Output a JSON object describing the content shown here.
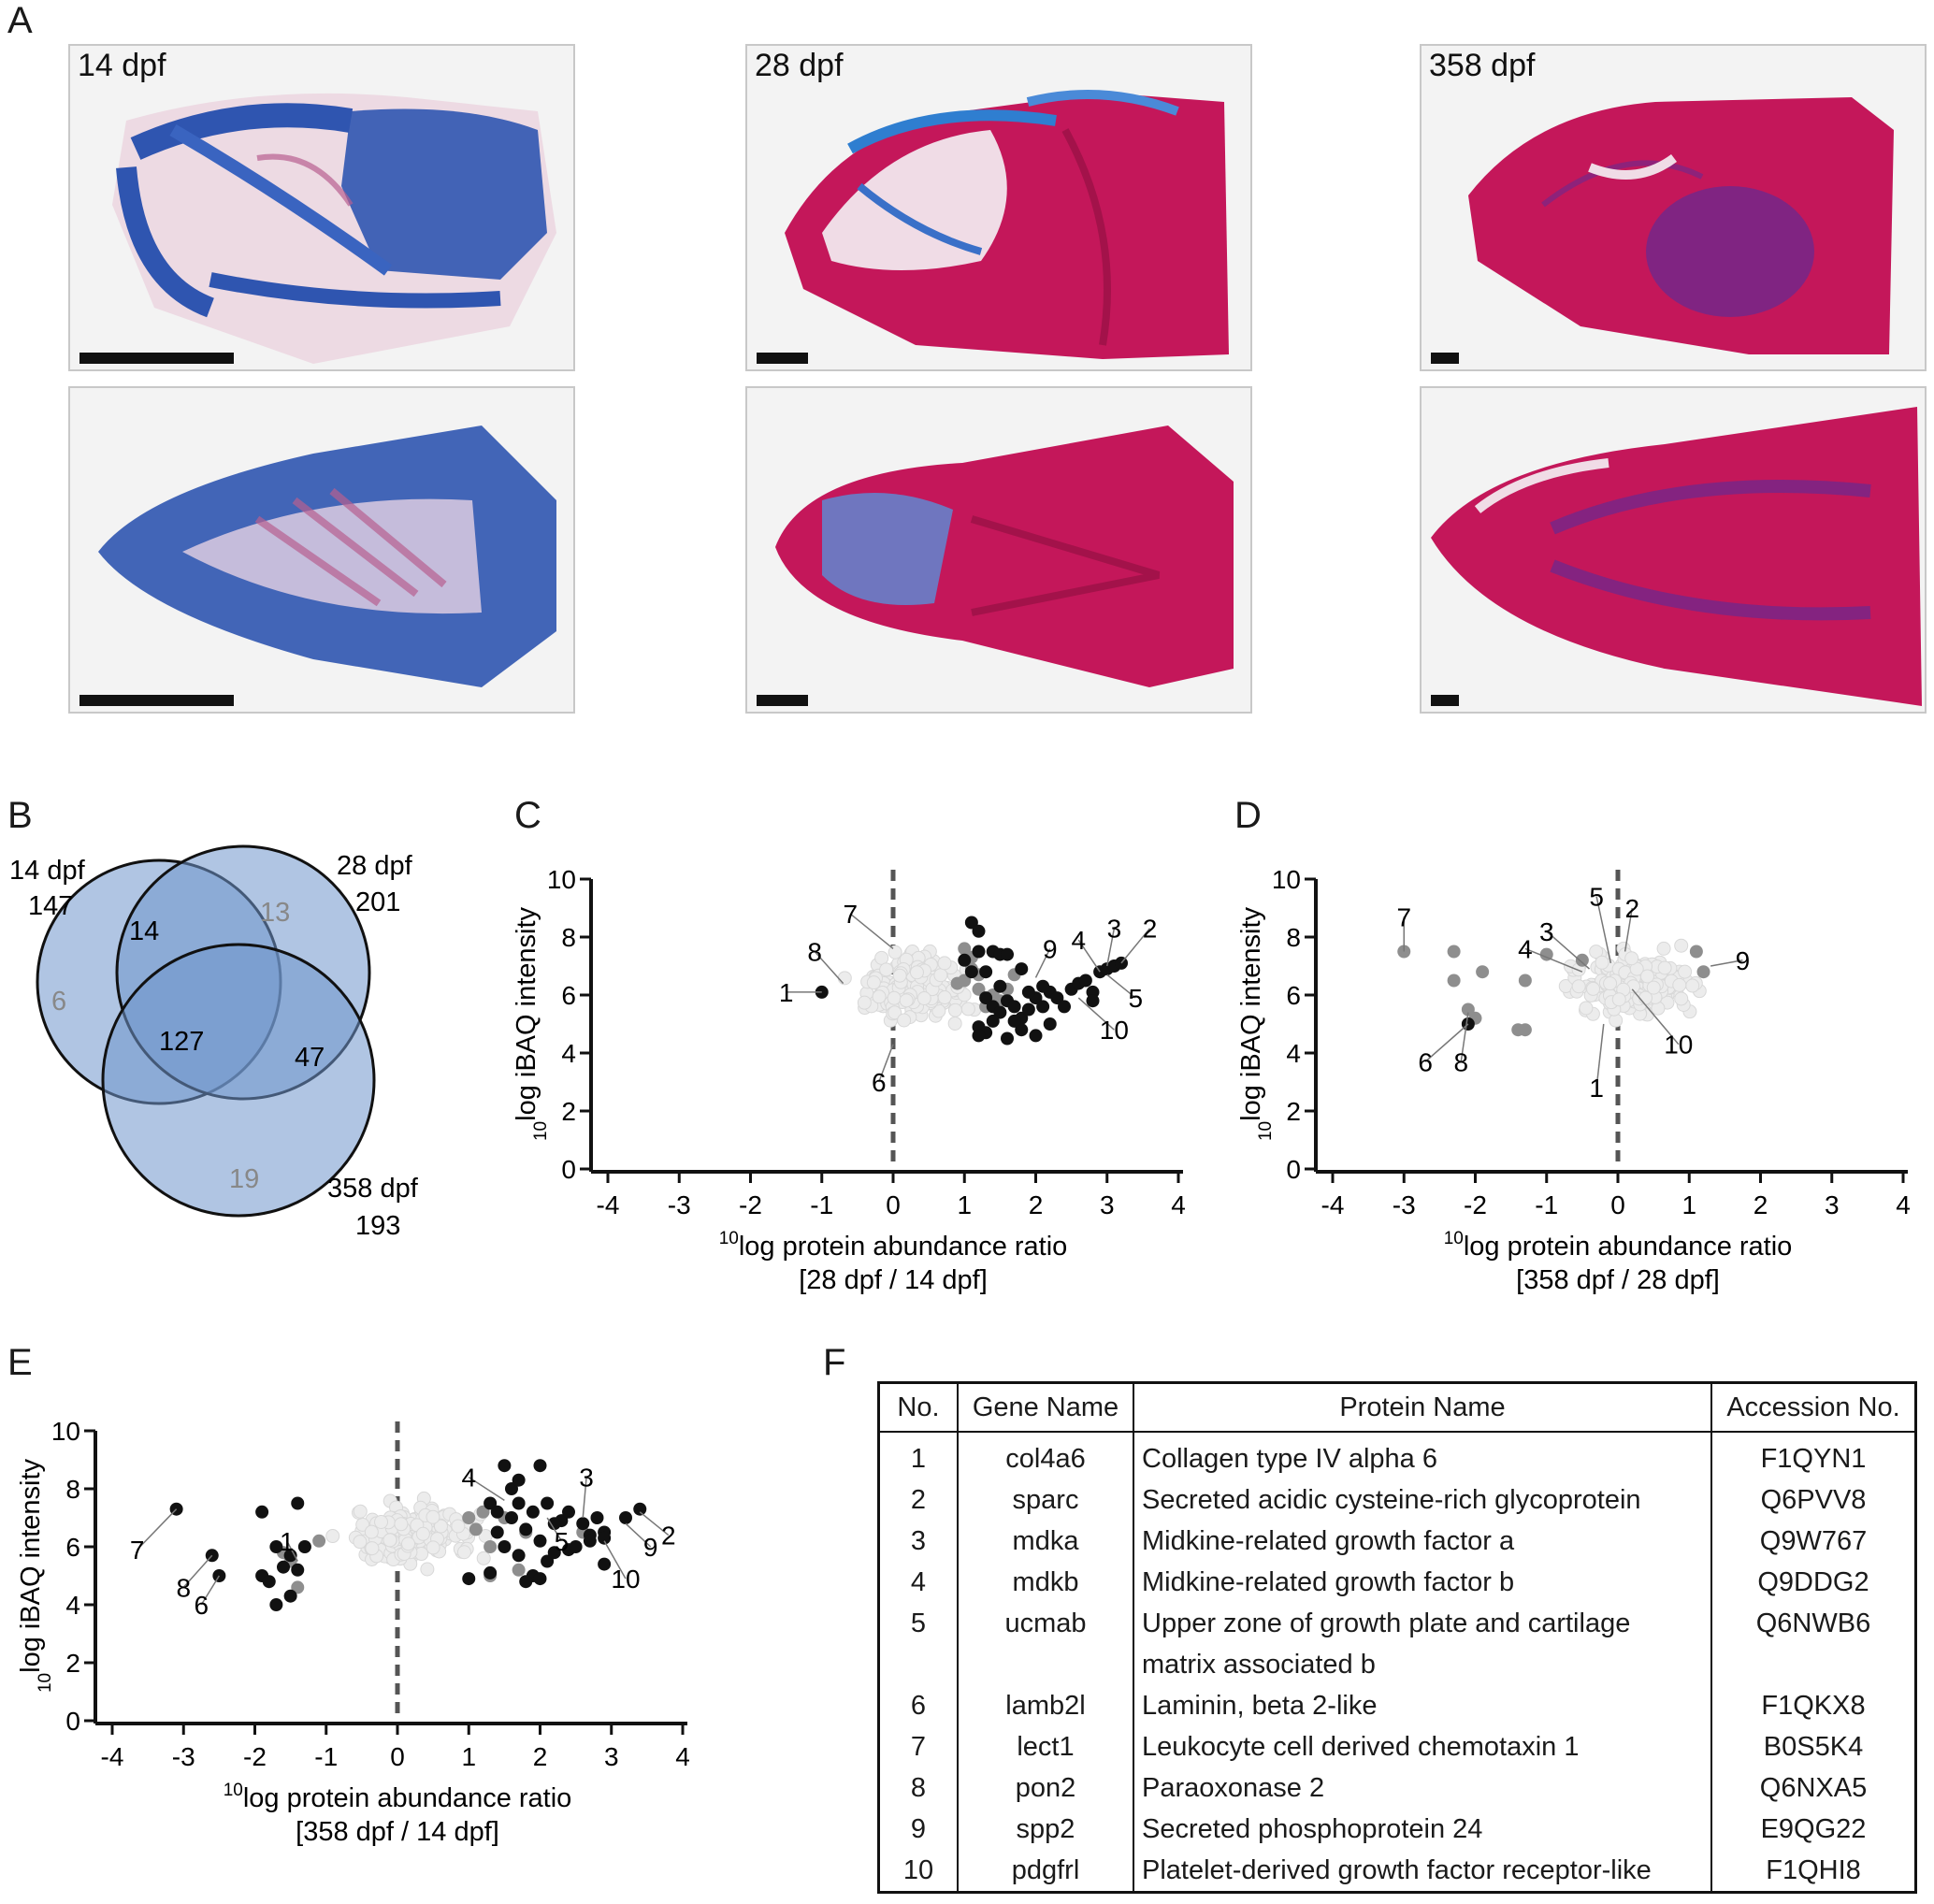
{
  "panel_letters": {
    "a": "A",
    "b": "B",
    "c": "C",
    "d": "D",
    "e": "E",
    "f": "F"
  },
  "panel_a": {
    "labels": [
      "14 dpf",
      "28 dpf",
      "358 dpf"
    ],
    "colors": {
      "alcian_blue": "#2f55b0",
      "alizarin_red": "#c4175a",
      "background": "#f3f3f3"
    }
  },
  "panel_b": {
    "sets": [
      {
        "label": "14 dpf",
        "total": "147"
      },
      {
        "label": "28 dpf",
        "total": "201"
      },
      {
        "label": "358 dpf",
        "total": "193"
      }
    ],
    "regions": {
      "only_14": "6",
      "only_28": "13",
      "only_358": "19",
      "14_28": "14",
      "28_358": "47",
      "all": "127"
    },
    "colors": {
      "fill": "#6f95cc",
      "edge": "#111111",
      "grey_text": "#888888"
    }
  },
  "chart_data": [
    {
      "panel": "C",
      "type": "scatter",
      "xlabel": "log protein abundance ratio",
      "xlabel_sup": "10",
      "xlabel2": "[28 dpf / 14 dpf]",
      "ylabel": "log iBAQ intensity",
      "ylabel_sup": "10",
      "xlim": [
        -4,
        4
      ],
      "ylim": [
        0,
        10
      ],
      "xticks": [
        "-4",
        "-3",
        "-2",
        "-1",
        "0",
        "1",
        "2",
        "3",
        "4"
      ],
      "yticks": [
        "0",
        "2",
        "4",
        "6",
        "8",
        "10"
      ],
      "grey_cloud": {
        "x_center": 0.3,
        "x_spread": 0.55,
        "y_center": 6.3,
        "y_spread": 0.9,
        "count": 220,
        "seed": 11
      },
      "mid_points": [
        [
          1.0,
          7.6
        ],
        [
          1.1,
          7.3
        ],
        [
          1.0,
          6.5
        ],
        [
          0.9,
          6.4
        ],
        [
          1.2,
          6.2
        ],
        [
          1.4,
          6.0
        ],
        [
          1.6,
          6.2
        ],
        [
          1.7,
          6.7
        ],
        [
          1.2,
          6.7
        ],
        [
          1.5,
          5.8
        ],
        [
          1.3,
          5.6
        ],
        [
          1.1,
          6.9
        ]
      ],
      "black_points": [
        [
          -1.0,
          6.1
        ],
        [
          1.1,
          8.5
        ],
        [
          1.2,
          8.2
        ],
        [
          1.2,
          7.5
        ],
        [
          1.4,
          7.5
        ],
        [
          1.5,
          7.4
        ],
        [
          1.6,
          7.4
        ],
        [
          1.1,
          6.8
        ],
        [
          1.3,
          6.8
        ],
        [
          1.8,
          6.9
        ],
        [
          1.3,
          5.9
        ],
        [
          1.4,
          5.6
        ],
        [
          1.5,
          5.4
        ],
        [
          1.6,
          5.8
        ],
        [
          1.7,
          5.6
        ],
        [
          1.8,
          5.2
        ],
        [
          1.9,
          5.5
        ],
        [
          2.0,
          5.9
        ],
        [
          2.1,
          5.6
        ],
        [
          2.2,
          6.1
        ],
        [
          2.3,
          5.9
        ],
        [
          2.4,
          5.6
        ],
        [
          2.5,
          6.2
        ],
        [
          2.6,
          6.4
        ],
        [
          2.8,
          6.1
        ],
        [
          2.9,
          6.8
        ],
        [
          3.0,
          6.9
        ],
        [
          3.1,
          7.0
        ],
        [
          3.2,
          7.1
        ],
        [
          1.2,
          4.9
        ],
        [
          1.3,
          4.7
        ],
        [
          1.6,
          4.5
        ],
        [
          1.8,
          4.8
        ],
        [
          2.0,
          4.6
        ],
        [
          1.4,
          5.1
        ],
        [
          1.7,
          5.1
        ],
        [
          2.2,
          5.0
        ],
        [
          1.9,
          6.1
        ],
        [
          1.5,
          6.3
        ],
        [
          2.8,
          5.8
        ],
        [
          2.1,
          6.3
        ],
        [
          1.2,
          4.6
        ],
        [
          2.7,
          6.5
        ],
        [
          1.0,
          7.2
        ]
      ],
      "annotations": [
        {
          "text": "1",
          "x": -1.5,
          "y": 6.1,
          "px": -1.0,
          "py": 6.1
        },
        {
          "text": "2",
          "x": 3.6,
          "y": 8.3,
          "px": 3.2,
          "py": 7.1
        },
        {
          "text": "3",
          "x": 3.1,
          "y": 8.3,
          "px": 3.0,
          "py": 7.0
        },
        {
          "text": "4",
          "x": 2.6,
          "y": 7.9,
          "px": 2.9,
          "py": 6.8
        },
        {
          "text": "5",
          "x": 3.4,
          "y": 5.9,
          "px": 3.0,
          "py": 6.7
        },
        {
          "text": "6",
          "x": -0.2,
          "y": 3.0,
          "px": 0.0,
          "py": 4.3
        },
        {
          "text": "7",
          "x": -0.6,
          "y": 8.8,
          "px": 0.0,
          "py": 7.6
        },
        {
          "text": "8",
          "x": -1.1,
          "y": 7.5,
          "px": -0.7,
          "py": 6.4
        },
        {
          "text": "9",
          "x": 2.2,
          "y": 7.6,
          "px": 2.0,
          "py": 6.6
        },
        {
          "text": "10",
          "x": 3.1,
          "y": 4.8,
          "px": 2.6,
          "py": 5.9
        }
      ]
    },
    {
      "panel": "D",
      "type": "scatter",
      "xlabel": "log protein abundance ratio",
      "xlabel_sup": "10",
      "xlabel2": "[358 dpf / 28 dpf]",
      "ylabel": "log iBAQ intensity",
      "ylabel_sup": "10",
      "xlim": [
        -4,
        4
      ],
      "ylim": [
        0,
        10
      ],
      "xticks": [
        "-4",
        "-3",
        "-2",
        "-1",
        "0",
        "1",
        "2",
        "3",
        "4"
      ],
      "yticks": [
        "0",
        "2",
        "4",
        "6",
        "8",
        "10"
      ],
      "grey_cloud": {
        "x_center": 0.2,
        "x_spread": 0.6,
        "y_center": 6.4,
        "y_spread": 0.9,
        "count": 240,
        "seed": 23
      },
      "mid_points": [
        [
          -3.0,
          7.5
        ],
        [
          -2.3,
          7.5
        ],
        [
          -2.3,
          6.5
        ],
        [
          -1.9,
          6.8
        ],
        [
          -2.1,
          5.5
        ],
        [
          -2.0,
          5.2
        ],
        [
          -1.3,
          6.5
        ],
        [
          -1.4,
          4.8
        ],
        [
          -1.3,
          4.8
        ],
        [
          1.1,
          7.5
        ],
        [
          1.2,
          6.8
        ],
        [
          -1.0,
          7.4
        ],
        [
          -0.5,
          7.2
        ]
      ],
      "black_points": [
        [
          -2.1,
          5.0
        ]
      ],
      "annotations": [
        {
          "text": "1",
          "x": -0.3,
          "y": 2.8,
          "px": -0.2,
          "py": 5.0
        },
        {
          "text": "2",
          "x": 0.2,
          "y": 9.0,
          "px": 0.1,
          "py": 7.5
        },
        {
          "text": "3",
          "x": -1.0,
          "y": 8.2,
          "px": -0.4,
          "py": 6.9
        },
        {
          "text": "4",
          "x": -1.3,
          "y": 7.6,
          "px": -0.5,
          "py": 6.8
        },
        {
          "text": "5",
          "x": -0.3,
          "y": 9.4,
          "px": -0.1,
          "py": 7.1
        },
        {
          "text": "6",
          "x": -2.7,
          "y": 3.7,
          "px": -2.1,
          "py": 5.0
        },
        {
          "text": "7",
          "x": -3.0,
          "y": 8.7,
          "px": -3.0,
          "py": 7.5
        },
        {
          "text": "8",
          "x": -2.2,
          "y": 3.7,
          "px": -2.1,
          "py": 5.4
        },
        {
          "text": "9",
          "x": 1.75,
          "y": 7.2,
          "px": 1.3,
          "py": 7.0
        },
        {
          "text": "10",
          "x": 0.85,
          "y": 4.3,
          "px": 0.2,
          "py": 6.2
        }
      ]
    },
    {
      "panel": "E",
      "type": "scatter",
      "xlabel": "log protein abundance ratio",
      "xlabel_sup": "10",
      "xlabel2": "[358 dpf / 14 dpf]",
      "ylabel": "log iBAQ intensity",
      "ylabel_sup": "10",
      "xlim": [
        -4,
        4
      ],
      "ylim": [
        0,
        10
      ],
      "xticks": [
        "-4",
        "-3",
        "-2",
        "-1",
        "0",
        "1",
        "2",
        "3",
        "4"
      ],
      "yticks": [
        "0",
        "2",
        "4",
        "6",
        "8",
        "10"
      ],
      "grey_cloud": {
        "x_center": 0.2,
        "x_spread": 0.7,
        "y_center": 6.4,
        "y_spread": 0.8,
        "count": 200,
        "seed": 37
      },
      "mid_points": [
        [
          -1.6,
          5.8
        ],
        [
          -1.5,
          5.5
        ],
        [
          -1.3,
          6.0
        ],
        [
          -1.1,
          6.2
        ],
        [
          -1.4,
          4.6
        ],
        [
          1.1,
          6.6
        ],
        [
          1.2,
          7.2
        ],
        [
          1.3,
          6.0
        ],
        [
          1.3,
          5.0
        ],
        [
          1.8,
          6.5
        ],
        [
          1.7,
          5.2
        ],
        [
          2.6,
          6.5
        ],
        [
          1.5,
          7.0
        ],
        [
          1.0,
          7.0
        ]
      ],
      "black_points": [
        [
          -3.1,
          7.3
        ],
        [
          -2.6,
          5.7
        ],
        [
          -2.5,
          5.0
        ],
        [
          -1.9,
          7.2
        ],
        [
          -1.9,
          5.0
        ],
        [
          -1.8,
          4.8
        ],
        [
          -1.7,
          4.0
        ],
        [
          -1.7,
          6.0
        ],
        [
          -1.6,
          5.3
        ],
        [
          -1.5,
          5.7
        ],
        [
          -1.5,
          4.3
        ],
        [
          -1.4,
          5.2
        ],
        [
          -1.4,
          7.5
        ],
        [
          -1.3,
          6.0
        ],
        [
          1.0,
          4.9
        ],
        [
          1.3,
          5.1
        ],
        [
          1.3,
          7.5
        ],
        [
          1.4,
          7.2
        ],
        [
          1.5,
          8.8
        ],
        [
          1.6,
          8.0
        ],
        [
          1.6,
          7.0
        ],
        [
          1.7,
          7.5
        ],
        [
          1.7,
          8.3
        ],
        [
          1.8,
          6.6
        ],
        [
          1.9,
          7.2
        ],
        [
          1.9,
          5.0
        ],
        [
          2.0,
          8.8
        ],
        [
          2.0,
          6.2
        ],
        [
          2.1,
          7.5
        ],
        [
          2.1,
          5.5
        ],
        [
          2.2,
          5.8
        ],
        [
          2.3,
          6.9
        ],
        [
          2.4,
          7.2
        ],
        [
          2.4,
          5.9
        ],
        [
          2.5,
          6.0
        ],
        [
          2.6,
          6.8
        ],
        [
          2.7,
          6.4
        ],
        [
          2.7,
          6.2
        ],
        [
          2.8,
          7.0
        ],
        [
          2.9,
          6.5
        ],
        [
          2.9,
          6.3
        ],
        [
          3.2,
          7.0
        ],
        [
          3.4,
          7.3
        ],
        [
          2.9,
          5.4
        ],
        [
          1.5,
          6.0
        ],
        [
          1.7,
          5.7
        ],
        [
          2.0,
          4.9
        ],
        [
          1.8,
          4.8
        ],
        [
          2.2,
          6.8
        ],
        [
          1.4,
          6.5
        ]
      ],
      "annotations": [
        {
          "text": "1",
          "x": -1.55,
          "y": 6.2,
          "px": -1.4,
          "py": 5.5
        },
        {
          "text": "2",
          "x": 3.8,
          "y": 6.4,
          "px": 3.4,
          "py": 7.2
        },
        {
          "text": "3",
          "x": 2.65,
          "y": 8.4,
          "px": 2.6,
          "py": 7.0
        },
        {
          "text": "4",
          "x": 1.0,
          "y": 8.4,
          "px": 1.5,
          "py": 7.6
        },
        {
          "text": "5",
          "x": 2.3,
          "y": 6.2,
          "px": 2.1,
          "py": 7.0
        },
        {
          "text": "6",
          "x": -2.75,
          "y": 4.0,
          "px": -2.5,
          "py": 5.0
        },
        {
          "text": "7",
          "x": -3.65,
          "y": 5.9,
          "px": -3.1,
          "py": 7.3
        },
        {
          "text": "8",
          "x": -3.0,
          "y": 4.6,
          "px": -2.6,
          "py": 5.7
        },
        {
          "text": "9",
          "x": 3.55,
          "y": 6.0,
          "px": 3.2,
          "py": 6.8
        },
        {
          "text": "10",
          "x": 3.2,
          "y": 4.9,
          "px": 2.9,
          "py": 6.2
        }
      ]
    }
  ],
  "panel_f": {
    "headers": [
      "No.",
      "Gene Name",
      "Protein Name",
      "Accession No."
    ],
    "rows": [
      [
        "1",
        "col4a6",
        "Collagen type IV alpha 6",
        "F1QYN1"
      ],
      [
        "2",
        "sparc",
        "Secreted acidic cysteine-rich glycoprotein",
        "Q6PVV8"
      ],
      [
        "3",
        "mdka",
        "Midkine-related growth factor a",
        "Q9W767"
      ],
      [
        "4",
        "mdkb",
        "Midkine-related growth factor b",
        "Q9DDG2"
      ],
      [
        "5",
        "ucmab",
        "Upper zone of growth plate and cartilage",
        "Q6NWB6"
      ],
      [
        "",
        "",
        "matrix associated b",
        ""
      ],
      [
        "6",
        "lamb2l",
        "Laminin, beta 2-like",
        "F1QKX8"
      ],
      [
        "7",
        "lect1",
        "Leukocyte cell derived chemotaxin 1",
        "B0S5K4"
      ],
      [
        "8",
        "pon2",
        "Paraoxonase 2",
        "Q6NXA5"
      ],
      [
        "9",
        "spp2",
        "Secreted phosphoprotein 24",
        "E9QG22"
      ],
      [
        "10",
        "pdgfrl",
        "Platelet-derived growth factor receptor-like",
        "F1QHI8"
      ]
    ]
  }
}
